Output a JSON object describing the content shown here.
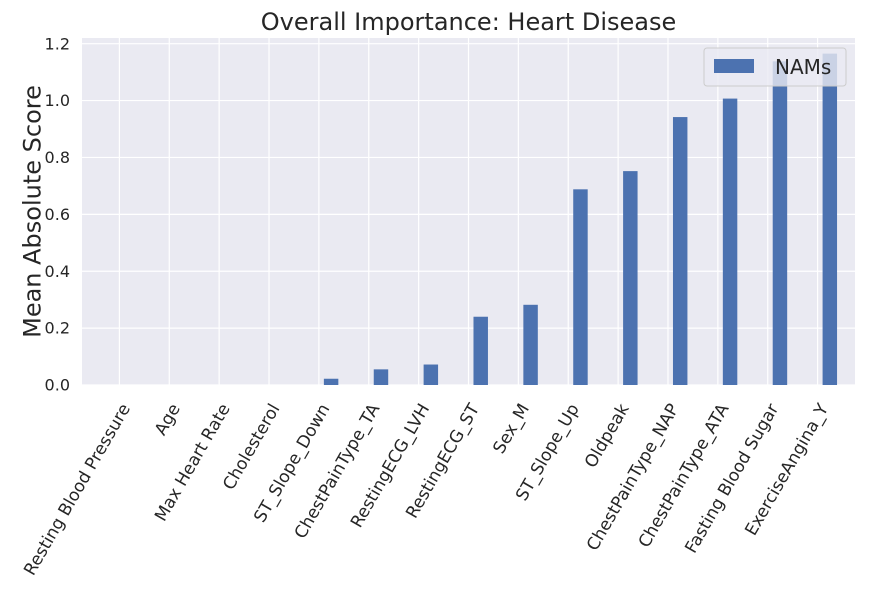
{
  "chart_data": {
    "type": "bar",
    "title": "Overall Importance: Heart Disease",
    "xlabel": "",
    "ylabel": "Mean Absolute Score",
    "ylim": [
      0,
      1.22
    ],
    "yticks": [
      "0.0",
      "0.2",
      "0.4",
      "0.6",
      "0.8",
      "1.0",
      "1.2"
    ],
    "grid": true,
    "legend_position": "top-right",
    "categories": [
      "Resting Blood Pressure",
      "Age",
      "Max Heart Rate",
      "Cholesterol",
      "ST_Slope_Down",
      "ChestPainType_TA",
      "RestingECG_LVH",
      "RestingECG_ST",
      "Sex_M",
      "ST_Slope_Up",
      "Oldpeak",
      "ChestPainType_NAP",
      "ChestPainType_ATA",
      "Fasting Blood Sugar",
      "ExerciseAngina_Y"
    ],
    "series": [
      {
        "name": "NAMs",
        "color": "#4c72b0",
        "values": [
          0.0,
          0.0,
          0.0,
          0.0,
          0.022,
          0.055,
          0.072,
          0.24,
          0.282,
          0.688,
          0.752,
          0.942,
          1.007,
          1.138,
          1.165
        ]
      }
    ]
  }
}
